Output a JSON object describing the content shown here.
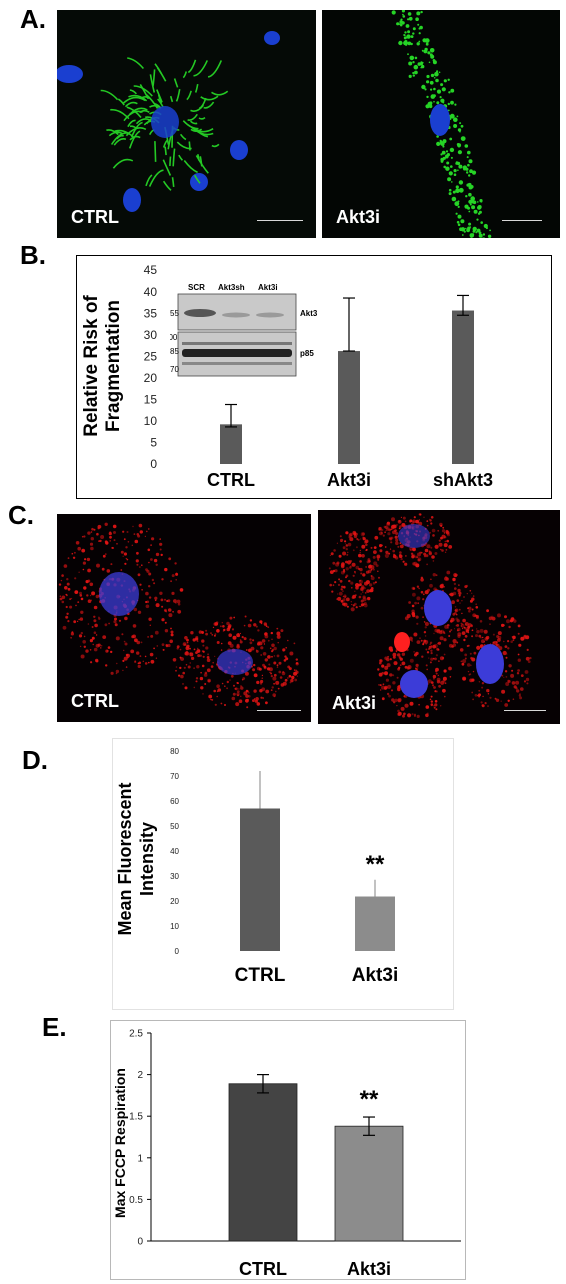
{
  "panels": {
    "A": {
      "label": "A.",
      "images": [
        {
          "caption": "CTRL",
          "channel_color": "#26d426"
        },
        {
          "caption": "Akt3i",
          "channel_color": "#26d426"
        }
      ]
    },
    "B": {
      "label": "B."
    },
    "C": {
      "label": "C.",
      "images": [
        {
          "caption": "CTRL",
          "channel_color": "#e01414"
        },
        {
          "caption": "Akt3i",
          "channel_color": "#e01414"
        }
      ]
    },
    "D": {
      "label": "D."
    },
    "E": {
      "label": "E."
    }
  },
  "blot": {
    "lanes": [
      "SCR",
      "Akt3sh",
      "Akt3i"
    ],
    "top_markers": [
      "55"
    ],
    "bottom_markers": [
      "100",
      "85",
      "70"
    ],
    "top_band": "Akt3",
    "bottom_band": "p85"
  },
  "chart_data": [
    {
      "id": "B",
      "type": "bar",
      "categories": [
        "CTRL",
        "Akt3i",
        "shAkt3"
      ],
      "values": [
        9.2,
        26.2,
        35.6
      ],
      "errors": [
        [
          8.6,
          13.8
        ],
        [
          26.2,
          38.5
        ],
        [
          34.5,
          39.1
        ]
      ],
      "ylabel": "Relative Risk of Fragmentation",
      "ylim": [
        0,
        45
      ],
      "yticks": [
        "0",
        "5",
        "10",
        "15",
        "20",
        "25",
        "30",
        "35",
        "40",
        "45"
      ],
      "bar_color": "#5a5a5a",
      "grid": false
    },
    {
      "id": "D",
      "type": "bar",
      "categories": [
        "CTRL",
        "Akt3i"
      ],
      "values": [
        57,
        21.8
      ],
      "errors": [
        [
          57,
          72
        ],
        [
          21.8,
          28.5
        ]
      ],
      "ylabel": "Mean Fluorescent Intensity",
      "ylim": [
        0,
        80
      ],
      "yticks": [
        "0",
        "10",
        "20",
        "30",
        "40",
        "50",
        "60",
        "70",
        "80"
      ],
      "bar_colors": [
        "#5a5a5a",
        "#8c8c8c"
      ],
      "annotations": [
        {
          "category": "Akt3i",
          "text": "**"
        }
      ],
      "grid": false
    },
    {
      "id": "E",
      "type": "bar",
      "categories": [
        "CTRL",
        "Akt3i"
      ],
      "values": [
        1.89,
        1.38
      ],
      "errors": [
        [
          1.78,
          2.0
        ],
        [
          1.27,
          1.49
        ]
      ],
      "ylabel": "Max FCCP Respiration",
      "ylim": [
        0,
        2.5
      ],
      "yticks": [
        "0",
        "0.5",
        "1",
        "1.5",
        "2",
        "2.5"
      ],
      "bar_colors": [
        "#444444",
        "#8c8c8c"
      ],
      "annotations": [
        {
          "category": "Akt3i",
          "text": "**"
        }
      ],
      "grid": false
    }
  ]
}
